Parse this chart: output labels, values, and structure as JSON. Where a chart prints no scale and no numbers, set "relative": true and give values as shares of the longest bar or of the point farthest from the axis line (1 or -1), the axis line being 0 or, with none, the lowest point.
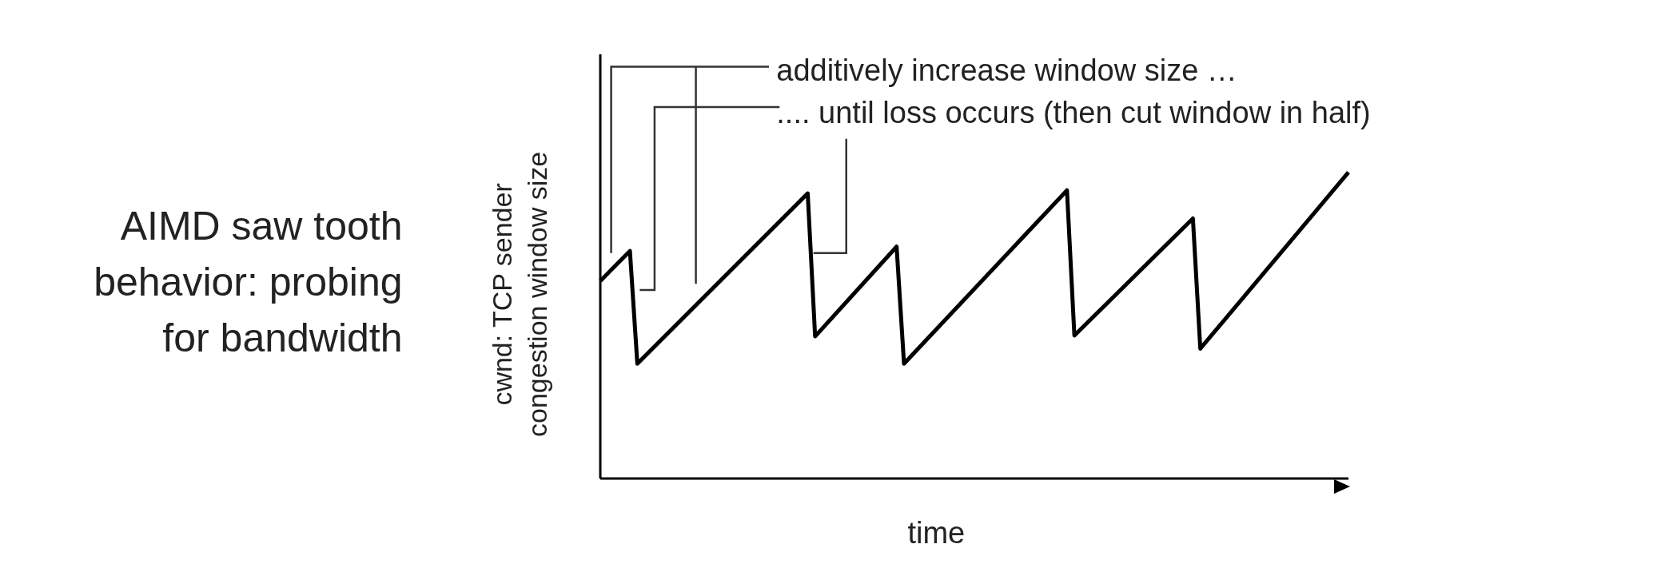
{
  "chart_data": {
    "type": "line",
    "title": "AIMD saw tooth\nbehavior: probing\nfor bandwidth",
    "xlabel": "time",
    "ylabel": "cwnd: TCP sender\ncongestion window size",
    "relative": true,
    "tick_labels": false,
    "annotations": [
      "additively increase window size …",
      ".... until loss occurs (then cut window in half)"
    ],
    "categories": [
      null,
      null,
      null,
      null,
      null,
      null,
      null,
      null,
      null,
      null,
      null,
      null,
      null,
      null,
      null,
      null,
      null,
      null,
      null,
      null,
      null,
      null,
      null,
      null,
      null,
      null,
      null,
      null,
      null,
      null,
      null,
      null,
      null,
      null,
      null,
      null,
      null,
      null,
      null,
      null,
      null,
      null,
      null,
      null,
      null,
      null,
      null,
      null,
      null,
      null,
      null,
      null,
      null,
      null,
      null,
      null,
      null,
      null,
      null,
      null,
      null,
      null,
      null,
      null,
      null,
      null,
      null,
      null,
      null,
      null,
      null,
      null,
      null,
      null,
      null,
      null,
      null,
      null,
      null,
      null,
      null,
      null,
      null,
      null,
      null,
      null,
      null,
      null,
      null,
      null,
      null,
      null,
      null,
      null,
      null,
      null,
      null,
      null,
      null,
      null,
      null,
      null
    ],
    "series": [
      {
        "color": "#000000",
        "values": [
          0.645,
          null,
          null,
          null,
          0.743,
          0.375,
          null,
          null,
          null,
          null,
          null,
          null,
          null,
          null,
          null,
          null,
          null,
          null,
          null,
          null,
          null,
          null,
          null,
          null,
          null,
          null,
          null,
          null,
          0.931,
          0.464,
          null,
          null,
          null,
          null,
          null,
          null,
          null,
          null,
          null,
          null,
          0.757,
          0.375,
          null,
          null,
          null,
          null,
          null,
          null,
          null,
          null,
          null,
          null,
          null,
          null,
          null,
          null,
          null,
          null,
          null,
          null,
          null,
          null,
          null,
          0.941,
          0.467,
          null,
          null,
          null,
          null,
          null,
          null,
          null,
          null,
          null,
          null,
          null,
          null,
          null,
          null,
          null,
          0.849,
          0.424,
          null,
          null,
          null,
          null,
          null,
          null,
          null,
          null,
          null,
          null,
          null,
          null,
          null,
          null,
          null,
          null,
          null,
          null,
          null,
          1
        ]
      }
    ]
  }
}
